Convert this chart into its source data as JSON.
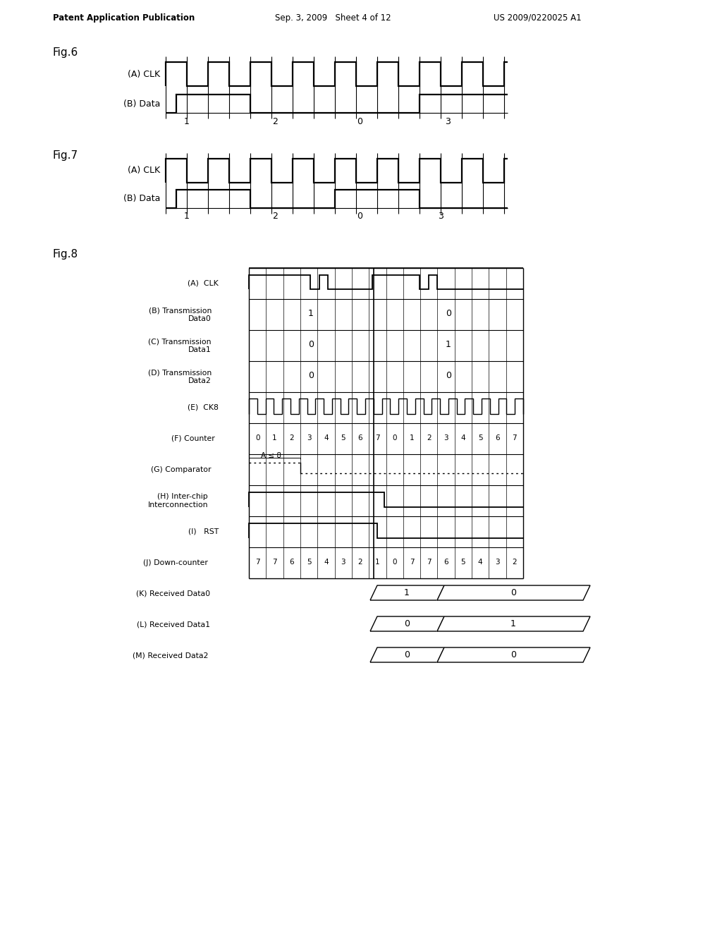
{
  "bg_color": "#ffffff",
  "header_left": "Patent Application Publication",
  "header_mid": "Sep. 3, 2009   Sheet 4 of 12",
  "header_right": "US 2009/0220025 A1",
  "fig6_label": "Fig.6",
  "fig7_label": "Fig.7",
  "fig8_label": "Fig.8",
  "counter_values": [
    "0",
    "1",
    "2",
    "3",
    "4",
    "5",
    "6",
    "7",
    "0",
    "1",
    "2",
    "3",
    "4",
    "5",
    "6",
    "7"
  ],
  "downcounter_values": [
    "7",
    "7",
    "6",
    "5",
    "4",
    "3",
    "2",
    "1",
    "0",
    "7",
    "7",
    "6",
    "5",
    "4",
    "3",
    "2"
  ]
}
